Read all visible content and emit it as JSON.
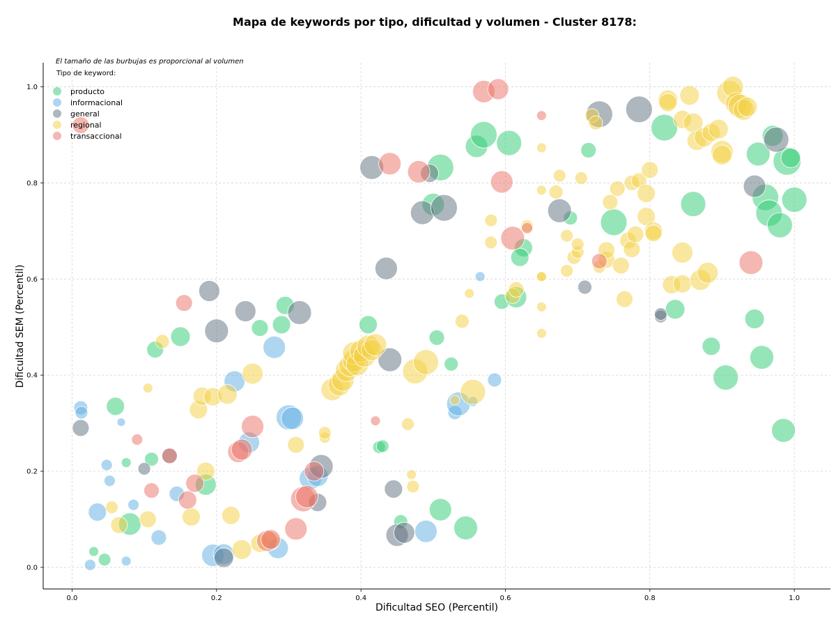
{
  "chart_data": {
    "type": "scatter",
    "title": "Mapa de keywords por tipo, dificultad y volumen - Cluster 8178:",
    "xlabel": "Dificultad SEO (Percentil)",
    "ylabel": "Dificultad SEM (Percentil)",
    "xlim": [
      -0.04,
      1.05
    ],
    "ylim": [
      -0.045,
      1.05
    ],
    "xticks": [
      "0.0",
      "0.2",
      "0.4",
      "0.6",
      "0.8",
      "1.0"
    ],
    "yticks": [
      "0.0",
      "0.2",
      "0.4",
      "0.6",
      "0.8",
      "1.0"
    ],
    "grid": true,
    "note": "El tamaño de las burbujas es proporcional al volumen",
    "legend_title": "Tipo de keyword:",
    "legend_position": "top-left",
    "series": [
      {
        "name": "producto",
        "color": "#2ecc71",
        "points": [
          [
            0.045,
            0.016,
            9
          ],
          [
            0.03,
            0.033,
            7
          ],
          [
            0.075,
            0.218,
            7
          ],
          [
            0.06,
            0.335,
            13
          ],
          [
            0.08,
            0.09,
            16
          ],
          [
            0.11,
            0.225,
            10
          ],
          [
            0.115,
            0.453,
            12
          ],
          [
            0.15,
            0.48,
            14
          ],
          [
            0.185,
            0.172,
            15
          ],
          [
            0.29,
            0.505,
            13
          ],
          [
            0.295,
            0.545,
            13
          ],
          [
            0.26,
            0.498,
            12
          ],
          [
            0.425,
            0.25,
            9
          ],
          [
            0.43,
            0.252,
            9
          ],
          [
            0.41,
            0.505,
            13
          ],
          [
            0.455,
            0.095,
            10
          ],
          [
            0.505,
            0.478,
            11
          ],
          [
            0.525,
            0.423,
            10
          ],
          [
            0.51,
            0.12,
            16
          ],
          [
            0.545,
            0.082,
            17
          ],
          [
            0.5,
            0.755,
            16
          ],
          [
            0.51,
            0.832,
            19
          ],
          [
            0.56,
            0.876,
            16
          ],
          [
            0.57,
            0.9,
            19
          ],
          [
            0.605,
            0.883,
            18
          ],
          [
            0.595,
            0.553,
            11
          ],
          [
            0.615,
            0.562,
            15
          ],
          [
            0.625,
            0.665,
            13
          ],
          [
            0.62,
            0.645,
            13
          ],
          [
            0.69,
            0.727,
            10
          ],
          [
            0.715,
            0.868,
            11
          ],
          [
            0.75,
            0.718,
            19
          ],
          [
            0.82,
            0.915,
            19
          ],
          [
            0.86,
            0.756,
            18
          ],
          [
            0.835,
            0.537,
            14
          ],
          [
            0.885,
            0.46,
            13
          ],
          [
            0.905,
            0.395,
            18
          ],
          [
            0.945,
            0.517,
            14
          ],
          [
            0.955,
            0.437,
            17
          ],
          [
            0.95,
            0.86,
            17
          ],
          [
            0.96,
            0.77,
            19
          ],
          [
            0.97,
            0.898,
            15
          ],
          [
            0.965,
            0.737,
            19
          ],
          [
            0.98,
            0.712,
            18
          ],
          [
            0.99,
            0.845,
            20
          ],
          [
            1.0,
            0.765,
            18
          ],
          [
            0.995,
            0.852,
            14
          ],
          [
            0.985,
            0.285,
            17
          ]
        ]
      },
      {
        "name": "informacional",
        "color": "#5dade2",
        "points": [
          [
            0.012,
            0.332,
            10
          ],
          [
            0.013,
            0.322,
            9
          ],
          [
            0.048,
            0.213,
            8
          ],
          [
            0.052,
            0.18,
            8
          ],
          [
            0.068,
            0.302,
            6
          ],
          [
            0.085,
            0.13,
            8
          ],
          [
            0.075,
            0.013,
            7
          ],
          [
            0.025,
            0.005,
            8
          ],
          [
            0.035,
            0.115,
            13
          ],
          [
            0.12,
            0.062,
            11
          ],
          [
            0.145,
            0.153,
            11
          ],
          [
            0.225,
            0.387,
            15
          ],
          [
            0.245,
            0.26,
            15
          ],
          [
            0.28,
            0.458,
            16
          ],
          [
            0.3,
            0.312,
            18
          ],
          [
            0.305,
            0.31,
            16
          ],
          [
            0.285,
            0.04,
            15
          ],
          [
            0.195,
            0.025,
            16
          ],
          [
            0.21,
            0.027,
            15
          ],
          [
            0.33,
            0.185,
            16
          ],
          [
            0.34,
            0.19,
            15
          ],
          [
            0.53,
            0.322,
            10
          ],
          [
            0.535,
            0.34,
            17
          ],
          [
            0.555,
            0.345,
            7
          ],
          [
            0.49,
            0.075,
            16
          ],
          [
            0.585,
            0.39,
            10
          ],
          [
            0.565,
            0.605,
            7
          ]
        ]
      },
      {
        "name": "general",
        "color": "#5d6d7e",
        "points": [
          [
            0.012,
            0.29,
            12
          ],
          [
            0.1,
            0.205,
            9
          ],
          [
            0.135,
            0.232,
            11
          ],
          [
            0.19,
            0.575,
            15
          ],
          [
            0.2,
            0.492,
            17
          ],
          [
            0.24,
            0.533,
            15
          ],
          [
            0.315,
            0.53,
            17
          ],
          [
            0.345,
            0.21,
            17
          ],
          [
            0.34,
            0.135,
            13
          ],
          [
            0.21,
            0.02,
            14
          ],
          [
            0.415,
            0.832,
            17
          ],
          [
            0.435,
            0.622,
            16
          ],
          [
            0.44,
            0.432,
            17
          ],
          [
            0.445,
            0.163,
            13
          ],
          [
            0.45,
            0.067,
            16
          ],
          [
            0.46,
            0.072,
            15
          ],
          [
            0.485,
            0.738,
            17
          ],
          [
            0.495,
            0.82,
            13
          ],
          [
            0.515,
            0.748,
            19
          ],
          [
            0.675,
            0.742,
            17
          ],
          [
            0.71,
            0.583,
            10
          ],
          [
            0.73,
            0.943,
            19
          ],
          [
            0.785,
            0.953,
            19
          ],
          [
            0.815,
            0.522,
            9
          ],
          [
            0.815,
            0.527,
            9
          ],
          [
            0.945,
            0.793,
            16
          ],
          [
            0.975,
            0.89,
            18
          ]
        ]
      },
      {
        "name": "regional",
        "color": "#f4d03f",
        "points": [
          [
            0.055,
            0.125,
            9
          ],
          [
            0.065,
            0.088,
            12
          ],
          [
            0.105,
            0.1,
            12
          ],
          [
            0.105,
            0.373,
            7
          ],
          [
            0.125,
            0.47,
            10
          ],
          [
            0.165,
            0.105,
            13
          ],
          [
            0.175,
            0.328,
            13
          ],
          [
            0.18,
            0.356,
            13
          ],
          [
            0.185,
            0.2,
            13
          ],
          [
            0.195,
            0.355,
            13
          ],
          [
            0.215,
            0.36,
            14
          ],
          [
            0.22,
            0.108,
            13
          ],
          [
            0.25,
            0.403,
            15
          ],
          [
            0.235,
            0.037,
            14
          ],
          [
            0.26,
            0.05,
            13
          ],
          [
            0.275,
            0.055,
            13
          ],
          [
            0.31,
            0.255,
            12
          ],
          [
            0.35,
            0.27,
            8
          ],
          [
            0.35,
            0.28,
            9
          ],
          [
            0.36,
            0.37,
            16
          ],
          [
            0.37,
            0.38,
            16
          ],
          [
            0.375,
            0.39,
            16
          ],
          [
            0.38,
            0.41,
            16
          ],
          [
            0.385,
            0.42,
            16
          ],
          [
            0.39,
            0.43,
            16
          ],
          [
            0.39,
            0.446,
            16
          ],
          [
            0.395,
            0.422,
            16
          ],
          [
            0.4,
            0.45,
            16
          ],
          [
            0.405,
            0.44,
            16
          ],
          [
            0.41,
            0.46,
            16
          ],
          [
            0.415,
            0.452,
            15
          ],
          [
            0.42,
            0.463,
            16
          ],
          [
            0.475,
            0.408,
            18
          ],
          [
            0.49,
            0.427,
            18
          ],
          [
            0.465,
            0.298,
            9
          ],
          [
            0.47,
            0.193,
            7
          ],
          [
            0.472,
            0.168,
            9
          ],
          [
            0.53,
            0.348,
            7
          ],
          [
            0.54,
            0.512,
            10
          ],
          [
            0.55,
            0.57,
            7
          ],
          [
            0.555,
            0.365,
            18
          ],
          [
            0.58,
            0.722,
            9
          ],
          [
            0.58,
            0.676,
            9
          ],
          [
            0.61,
            0.565,
            11
          ],
          [
            0.615,
            0.578,
            11
          ],
          [
            0.63,
            0.71,
            9
          ],
          [
            0.65,
            0.605,
            7
          ],
          [
            0.65,
            0.605,
            7
          ],
          [
            0.65,
            0.542,
            7
          ],
          [
            0.65,
            0.487,
            7
          ],
          [
            0.65,
            0.785,
            7
          ],
          [
            0.65,
            0.873,
            7
          ],
          [
            0.67,
            0.781,
            10
          ],
          [
            0.675,
            0.815,
            9
          ],
          [
            0.685,
            0.69,
            9
          ],
          [
            0.685,
            0.617,
            9
          ],
          [
            0.695,
            0.645,
            10
          ],
          [
            0.7,
            0.656,
            9
          ],
          [
            0.7,
            0.672,
            9
          ],
          [
            0.705,
            0.81,
            9
          ],
          [
            0.72,
            0.94,
            10
          ],
          [
            0.725,
            0.925,
            10
          ],
          [
            0.73,
            0.625,
            9
          ],
          [
            0.74,
            0.64,
            12
          ],
          [
            0.74,
            0.66,
            12
          ],
          [
            0.745,
            0.76,
            11
          ],
          [
            0.755,
            0.788,
            11
          ],
          [
            0.76,
            0.628,
            12
          ],
          [
            0.765,
            0.558,
            12
          ],
          [
            0.77,
            0.68,
            12
          ],
          [
            0.775,
            0.8,
            11
          ],
          [
            0.775,
            0.662,
            12
          ],
          [
            0.78,
            0.693,
            12
          ],
          [
            0.785,
            0.805,
            11
          ],
          [
            0.795,
            0.73,
            13
          ],
          [
            0.795,
            0.778,
            13
          ],
          [
            0.8,
            0.827,
            12
          ],
          [
            0.805,
            0.7,
            13
          ],
          [
            0.805,
            0.695,
            12
          ],
          [
            0.825,
            0.973,
            14
          ],
          [
            0.825,
            0.967,
            13
          ],
          [
            0.83,
            0.588,
            13
          ],
          [
            0.845,
            0.655,
            15
          ],
          [
            0.845,
            0.59,
            13
          ],
          [
            0.845,
            0.932,
            13
          ],
          [
            0.855,
            0.982,
            14
          ],
          [
            0.86,
            0.925,
            14
          ],
          [
            0.865,
            0.888,
            14
          ],
          [
            0.87,
            0.598,
            15
          ],
          [
            0.875,
            0.895,
            14
          ],
          [
            0.88,
            0.613,
            15
          ],
          [
            0.885,
            0.905,
            13
          ],
          [
            0.895,
            0.912,
            14
          ],
          [
            0.9,
            0.865,
            16
          ],
          [
            0.9,
            0.858,
            14
          ],
          [
            0.91,
            0.987,
            18
          ],
          [
            0.915,
            1.0,
            15
          ],
          [
            0.92,
            0.965,
            16
          ],
          [
            0.925,
            0.96,
            17
          ],
          [
            0.93,
            0.952,
            15
          ],
          [
            0.935,
            0.958,
            14
          ]
        ]
      },
      {
        "name": "transaccional",
        "color": "#ec7063",
        "points": [
          [
            0.012,
            0.92,
            12
          ],
          [
            0.09,
            0.266,
            8
          ],
          [
            0.11,
            0.16,
            11
          ],
          [
            0.135,
            0.232,
            11
          ],
          [
            0.155,
            0.55,
            12
          ],
          [
            0.16,
            0.14,
            13
          ],
          [
            0.17,
            0.175,
            13
          ],
          [
            0.23,
            0.24,
            15
          ],
          [
            0.235,
            0.245,
            15
          ],
          [
            0.25,
            0.293,
            16
          ],
          [
            0.27,
            0.055,
            15
          ],
          [
            0.275,
            0.058,
            14
          ],
          [
            0.31,
            0.08,
            16
          ],
          [
            0.32,
            0.142,
            18
          ],
          [
            0.325,
            0.147,
            16
          ],
          [
            0.335,
            0.2,
            14
          ],
          [
            0.42,
            0.305,
            7
          ],
          [
            0.44,
            0.84,
            16
          ],
          [
            0.48,
            0.823,
            16
          ],
          [
            0.57,
            0.99,
            16
          ],
          [
            0.59,
            0.995,
            15
          ],
          [
            0.595,
            0.802,
            16
          ],
          [
            0.61,
            0.685,
            17
          ],
          [
            0.63,
            0.706,
            8
          ],
          [
            0.65,
            0.94,
            7
          ],
          [
            0.73,
            0.637,
            11
          ],
          [
            0.94,
            0.634,
            17
          ]
        ]
      }
    ]
  }
}
